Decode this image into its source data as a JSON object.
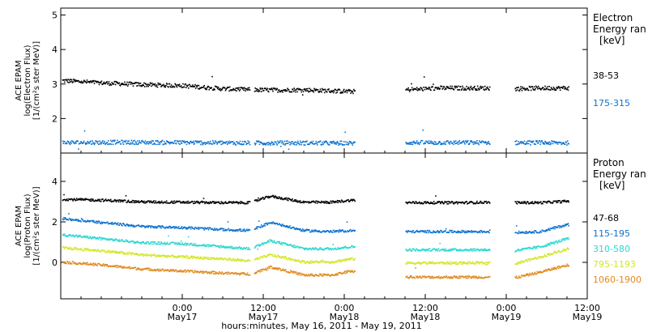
{
  "chart_data": {
    "type": "scatter",
    "xlabel": "hours:minutes, May 16, 2011 - May 19, 2011",
    "xlim": [
      0,
      78
    ],
    "x_ticks": [
      {
        "t": 18,
        "time": "0:00",
        "date": "May17"
      },
      {
        "t": 30,
        "time": "12:00",
        "date": "May17"
      },
      {
        "t": 42,
        "time": "0:00",
        "date": "May18"
      },
      {
        "t": 54,
        "time": "12:00",
        "date": "May18"
      },
      {
        "t": 66,
        "time": "0:00",
        "date": "May19"
      },
      {
        "t": 78,
        "time": "12:00",
        "date": "May19"
      }
    ],
    "data_gaps": [
      [
        28.0,
        28.6
      ],
      [
        43.5,
        51.0
      ],
      [
        63.5,
        67.2
      ]
    ],
    "panels": [
      {
        "id": "electron",
        "ylabel_lines": [
          "ACE EPAM",
          "log(Electron Flux)",
          "[1/(cm²s ster MeV)]"
        ],
        "ylim": [
          1.0,
          5.2
        ],
        "y_ticks": [
          2,
          3,
          4,
          5
        ],
        "legend_title": [
          "Electron",
          "Energy ran",
          "[keV]"
        ],
        "series": [
          {
            "name": "38-53",
            "color": "#000000",
            "points": [
              [
                0,
                3.12
              ],
              [
                6,
                3.05
              ],
              [
                12,
                3.0
              ],
              [
                18,
                2.97
              ],
              [
                24,
                2.88
              ],
              [
                28,
                2.85
              ],
              [
                32,
                2.84
              ],
              [
                36,
                2.85
              ],
              [
                40,
                2.82
              ],
              [
                43,
                2.8
              ],
              [
                51,
                2.85
              ],
              [
                56,
                2.9
              ],
              [
                60,
                2.9
              ],
              [
                63,
                2.9
              ],
              [
                67,
                2.88
              ],
              [
                71,
                2.9
              ],
              [
                75,
                2.9
              ]
            ]
          },
          {
            "name": "175-315",
            "color": "#0c73d0",
            "points": [
              [
                0,
                1.32
              ],
              [
                10,
                1.33
              ],
              [
                20,
                1.32
              ],
              [
                28,
                1.31
              ],
              [
                36,
                1.31
              ],
              [
                43,
                1.3
              ],
              [
                51,
                1.32
              ],
              [
                60,
                1.32
              ],
              [
                63,
                1.32
              ],
              [
                67,
                1.32
              ],
              [
                75,
                1.31
              ]
            ]
          }
        ]
      },
      {
        "id": "proton",
        "ylabel_lines": [
          "ACE EPAM",
          "log(Proton Flux)",
          "[1/(cm²s ster MeV)]"
        ],
        "ylim": [
          -1.8,
          5.4
        ],
        "y_ticks": [
          0,
          2,
          4
        ],
        "legend_title": [
          "Proton",
          "Energy ran",
          "[keV]"
        ],
        "series": [
          {
            "name": "47-68",
            "color": "#000000",
            "points": [
              [
                0,
                3.15
              ],
              [
                6,
                3.1
              ],
              [
                12,
                3.02
              ],
              [
                18,
                3.0
              ],
              [
                24,
                2.98
              ],
              [
                28,
                2.98
              ],
              [
                31,
                3.3
              ],
              [
                36,
                3.0
              ],
              [
                40,
                3.0
              ],
              [
                43,
                3.1
              ],
              [
                51,
                2.98
              ],
              [
                56,
                2.98
              ],
              [
                60,
                2.98
              ],
              [
                63,
                3.0
              ],
              [
                67,
                2.98
              ],
              [
                71,
                2.98
              ],
              [
                75,
                3.05
              ]
            ]
          },
          {
            "name": "115-195",
            "color": "#0c73d0",
            "points": [
              [
                0,
                2.2
              ],
              [
                6,
                2.0
              ],
              [
                12,
                1.8
              ],
              [
                18,
                1.75
              ],
              [
                24,
                1.65
              ],
              [
                28,
                1.6
              ],
              [
                31,
                2.0
              ],
              [
                36,
                1.6
              ],
              [
                40,
                1.55
              ],
              [
                43,
                1.6
              ],
              [
                51,
                1.55
              ],
              [
                56,
                1.55
              ],
              [
                60,
                1.55
              ],
              [
                63,
                1.55
              ],
              [
                67,
                1.5
              ],
              [
                71,
                1.55
              ],
              [
                75,
                1.9
              ]
            ]
          },
          {
            "name": "310-580",
            "color": "#2ad8d2",
            "points": [
              [
                0,
                1.4
              ],
              [
                6,
                1.2
              ],
              [
                12,
                1.0
              ],
              [
                18,
                0.95
              ],
              [
                24,
                0.8
              ],
              [
                28,
                0.7
              ],
              [
                31,
                1.1
              ],
              [
                36,
                0.7
              ],
              [
                40,
                0.7
              ],
              [
                43,
                0.8
              ],
              [
                51,
                0.65
              ],
              [
                56,
                0.65
              ],
              [
                60,
                0.65
              ],
              [
                63,
                0.65
              ],
              [
                67,
                0.6
              ],
              [
                71,
                0.8
              ],
              [
                75,
                1.2
              ]
            ]
          },
          {
            "name": "795-1193",
            "color": "#d3e629",
            "points": [
              [
                0,
                0.75
              ],
              [
                6,
                0.6
              ],
              [
                12,
                0.4
              ],
              [
                18,
                0.3
              ],
              [
                24,
                0.2
              ],
              [
                28,
                0.1
              ],
              [
                31,
                0.4
              ],
              [
                36,
                0.05
              ],
              [
                40,
                0.05
              ],
              [
                43,
                0.2
              ],
              [
                51,
                0.0
              ],
              [
                56,
                0.0
              ],
              [
                60,
                0.0
              ],
              [
                63,
                0.0
              ],
              [
                67,
                -0.05
              ],
              [
                71,
                0.3
              ],
              [
                75,
                0.7
              ]
            ]
          },
          {
            "name": "1060-1900",
            "color": "#e08a1e",
            "points": [
              [
                0,
                0.05
              ],
              [
                6,
                -0.1
              ],
              [
                12,
                -0.3
              ],
              [
                18,
                -0.4
              ],
              [
                24,
                -0.5
              ],
              [
                28,
                -0.55
              ],
              [
                31,
                -0.2
              ],
              [
                36,
                -0.6
              ],
              [
                40,
                -0.6
              ],
              [
                43,
                -0.4
              ],
              [
                51,
                -0.7
              ],
              [
                56,
                -0.7
              ],
              [
                60,
                -0.7
              ],
              [
                63,
                -0.7
              ],
              [
                67,
                -0.75
              ],
              [
                71,
                -0.45
              ],
              [
                75,
                -0.1
              ]
            ]
          }
        ]
      }
    ]
  }
}
